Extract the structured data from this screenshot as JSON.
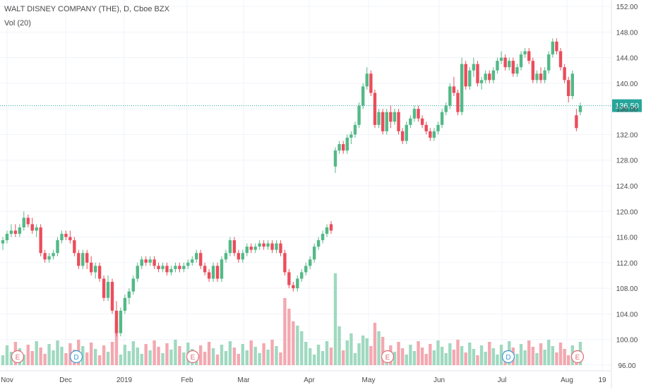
{
  "header": {
    "symbol_line": "WALT DISNEY COMPANY (THE), D, Cboe BZX",
    "indicator": "Vol (20)"
  },
  "colors": {
    "up": "#53b987",
    "down": "#eb4d5c",
    "vol_up": "#9fd9c0",
    "vol_down": "#f3a8b0",
    "grid": "#f0f3fa",
    "axis_text": "#4a4a4a",
    "price_line": "#26a69a",
    "last_price_bg": "#26a69a",
    "event_earnings": "#e06c75",
    "event_dividend": "#3a9bd5"
  },
  "price_axis": {
    "ticks": [
      "152.00",
      "148.00",
      "144.00",
      "140.00",
      "136.00",
      "132.00",
      "128.00",
      "124.00",
      "120.00",
      "116.00",
      "112.00",
      "108.00",
      "104.00",
      "100.00",
      "96.00"
    ],
    "last_price_label": "136.50"
  },
  "time_axis": {
    "labels": [
      "Nov",
      "Dec",
      "2019",
      "Feb",
      "Mar",
      "Apr",
      "May",
      "Jun",
      "Jul",
      "Aug",
      "19"
    ]
  },
  "events": [
    {
      "type": "earnings",
      "label": "E"
    },
    {
      "type": "dividend",
      "label": "D"
    },
    {
      "type": "earnings",
      "label": "E"
    },
    {
      "type": "earnings",
      "label": "E"
    },
    {
      "type": "dividend",
      "label": "D"
    },
    {
      "type": "earnings",
      "label": "E"
    }
  ],
  "chart_data": {
    "type": "candlestick",
    "title": "WALT DISNEY COMPANY (THE), D, Cboe BZX",
    "y_range": [
      96,
      153
    ],
    "last_price": 136.5,
    "volume_indicator": "Vol (20)",
    "series_hint": "daily OHLC approximated from the figure",
    "ohlc": [
      [
        115,
        116,
        114,
        115.5
      ],
      [
        115.5,
        117,
        115,
        116.5
      ],
      [
        116.5,
        118,
        116,
        117
      ],
      [
        117,
        118,
        116,
        116.5
      ],
      [
        116.5,
        118,
        116,
        117.5
      ],
      [
        117.5,
        120,
        117,
        119
      ],
      [
        119,
        119.5,
        117.5,
        118
      ],
      [
        118,
        119,
        116.5,
        117
      ],
      [
        117,
        118,
        116,
        117.5
      ],
      [
        117.5,
        118,
        113,
        113.5
      ],
      [
        113.5,
        114,
        112,
        112.5
      ],
      [
        112.5,
        113.5,
        112,
        113
      ],
      [
        113,
        114,
        112.5,
        113.5
      ],
      [
        113.5,
        116,
        113,
        115.5
      ],
      [
        115.5,
        117,
        115,
        116.5
      ],
      [
        116.5,
        117,
        115.5,
        116
      ],
      [
        116,
        117,
        115,
        115.5
      ],
      [
        115.5,
        116,
        113,
        113.5
      ],
      [
        113.5,
        114,
        111,
        111.5
      ],
      [
        111.5,
        114,
        111,
        113.5
      ],
      [
        113.5,
        114,
        111,
        112
      ],
      [
        112,
        113,
        110,
        110.5
      ],
      [
        110.5,
        112,
        109.5,
        111.5
      ],
      [
        111.5,
        112,
        109,
        109.5
      ],
      [
        109.5,
        110,
        106,
        106.5
      ],
      [
        106.5,
        110,
        106,
        109
      ],
      [
        109,
        109.5,
        104,
        104.5
      ],
      [
        104.5,
        106,
        100.5,
        101
      ],
      [
        101,
        105,
        100.5,
        104.5
      ],
      [
        104.5,
        107,
        104,
        106.5
      ],
      [
        106.5,
        108,
        105.5,
        107.5
      ],
      [
        107.5,
        110,
        107,
        109.5
      ],
      [
        109.5,
        112,
        109,
        111.5
      ],
      [
        111.5,
        113,
        111,
        112.5
      ],
      [
        112.5,
        113,
        111.5,
        112
      ],
      [
        112,
        113,
        111.5,
        112.5
      ],
      [
        112.5,
        113,
        111,
        111.5
      ],
      [
        111.5,
        112,
        110.5,
        111
      ],
      [
        111,
        112,
        110.5,
        111.5
      ],
      [
        111.5,
        112,
        110,
        110.5
      ],
      [
        110.5,
        111.5,
        110,
        111
      ],
      [
        111,
        112,
        110.5,
        111.5
      ],
      [
        111.5,
        112,
        110.5,
        111
      ],
      [
        111,
        112,
        110.5,
        111.5
      ],
      [
        111.5,
        112.5,
        111,
        112
      ],
      [
        112,
        113,
        111.5,
        112.5
      ],
      [
        112.5,
        114,
        112,
        113.5
      ],
      [
        113.5,
        114,
        111,
        111.5
      ],
      [
        111.5,
        112,
        110,
        110.5
      ],
      [
        110.5,
        111,
        109,
        109.5
      ],
      [
        109.5,
        112,
        109,
        111.5
      ],
      [
        111.5,
        112,
        109,
        109.5
      ],
      [
        109.5,
        113,
        109,
        112.5
      ],
      [
        112.5,
        114,
        112,
        113.5
      ],
      [
        113.5,
        116,
        113,
        115.5
      ],
      [
        115.5,
        116,
        113,
        113.5
      ],
      [
        113.5,
        114,
        112,
        112.5
      ],
      [
        112.5,
        114,
        112,
        113.5
      ],
      [
        113.5,
        115,
        113,
        114.5
      ],
      [
        114.5,
        115,
        113.5,
        114
      ],
      [
        114,
        115,
        113.5,
        114.5
      ],
      [
        114.5,
        115.5,
        114,
        115
      ],
      [
        115,
        115.5,
        114,
        114.5
      ],
      [
        114.5,
        115.5,
        114,
        115
      ],
      [
        115,
        115.5,
        113.5,
        114
      ],
      [
        114,
        115.5,
        113.5,
        115
      ],
      [
        115,
        115.5,
        113,
        113.5
      ],
      [
        113.5,
        114,
        110,
        110.5
      ],
      [
        110.5,
        111,
        108,
        108.5
      ],
      [
        108.5,
        109,
        107.5,
        108
      ],
      [
        108,
        110,
        107.5,
        109.5
      ],
      [
        109.5,
        111,
        109,
        110.5
      ],
      [
        110.5,
        112,
        110,
        111.5
      ],
      [
        111.5,
        113,
        111,
        112.5
      ],
      [
        112.5,
        115,
        112,
        114.5
      ],
      [
        114.5,
        116,
        114,
        115.5
      ],
      [
        115.5,
        117,
        115,
        116.5
      ],
      [
        116.5,
        118,
        116,
        117.5
      ],
      [
        118,
        118.5,
        116.5,
        117
      ],
      [
        127,
        130,
        126,
        129.5
      ],
      [
        129.5,
        131,
        129,
        130.5
      ],
      [
        130.5,
        131,
        129,
        129.5
      ],
      [
        129.5,
        132,
        129,
        131.5
      ],
      [
        131.5,
        132.5,
        130.5,
        132
      ],
      [
        132,
        134,
        131.5,
        133.5
      ],
      [
        133.5,
        137,
        133,
        136.5
      ],
      [
        136.5,
        140,
        136,
        139.5
      ],
      [
        139.5,
        142.5,
        139,
        141.5
      ],
      [
        141.5,
        142,
        138,
        138.5
      ],
      [
        138.5,
        139,
        133,
        133.5
      ],
      [
        133.5,
        136,
        133,
        135.5
      ],
      [
        135.5,
        136,
        132,
        132.5
      ],
      [
        132.5,
        136,
        132,
        135.5
      ],
      [
        135.5,
        136.5,
        133,
        134
      ],
      [
        134,
        136,
        133.5,
        135.5
      ],
      [
        135.5,
        136,
        132,
        132.5
      ],
      [
        132.5,
        133,
        130.5,
        131
      ],
      [
        131,
        134,
        130.5,
        133.5
      ],
      [
        133.5,
        135,
        133,
        134.5
      ],
      [
        134.5,
        136.5,
        134,
        136
      ],
      [
        136,
        136.5,
        134,
        134.5
      ],
      [
        134.5,
        135,
        133,
        133.5
      ],
      [
        133.5,
        134,
        132,
        132.5
      ],
      [
        132.5,
        133,
        131,
        131.5
      ],
      [
        131.5,
        133,
        131,
        132.5
      ],
      [
        132.5,
        134,
        132,
        133.5
      ],
      [
        133.5,
        136,
        133,
        135.5
      ],
      [
        135.5,
        137,
        135,
        136.5
      ],
      [
        136.5,
        140,
        136,
        139.5
      ],
      [
        139.5,
        141,
        138,
        138.5
      ],
      [
        138.5,
        139,
        135,
        135.5
      ],
      [
        135.5,
        144,
        135,
        143
      ],
      [
        143,
        143.5,
        139,
        139.5
      ],
      [
        139.5,
        142.5,
        139,
        142
      ],
      [
        142,
        144,
        141,
        143
      ],
      [
        143,
        143.5,
        139.5,
        140
      ],
      [
        140,
        141,
        139,
        140.5
      ],
      [
        140.5,
        142,
        140,
        141.5
      ],
      [
        141.5,
        142,
        140,
        140.5
      ],
      [
        140.5,
        142.5,
        140,
        142
      ],
      [
        142,
        144,
        141.5,
        143.5
      ],
      [
        143.5,
        145,
        143,
        144
      ],
      [
        144,
        144.5,
        142,
        142.5
      ],
      [
        142.5,
        144,
        142,
        143.5
      ],
      [
        143.5,
        144,
        141,
        141.5
      ],
      [
        141.5,
        143,
        141,
        142.5
      ],
      [
        142.5,
        145,
        142,
        144.5
      ],
      [
        144.5,
        145.5,
        144,
        145
      ],
      [
        145,
        145.5,
        143,
        143.5
      ],
      [
        143.5,
        144,
        140,
        140.5
      ],
      [
        140.5,
        142,
        140,
        141.5
      ],
      [
        141.5,
        142.5,
        140,
        140.5
      ],
      [
        140.5,
        142.5,
        140,
        142
      ],
      [
        142,
        145,
        141.5,
        144.5
      ],
      [
        144.5,
        147,
        144,
        146.5
      ],
      [
        146.5,
        147,
        144.5,
        145
      ],
      [
        145,
        145.5,
        142,
        142.5
      ],
      [
        142.5,
        143,
        140,
        140.5
      ],
      [
        140.5,
        141,
        137,
        138
      ],
      [
        138,
        142,
        137.5,
        141.5
      ],
      [
        135,
        136,
        132.5,
        133
      ],
      [
        135.5,
        137,
        135,
        136.5
      ]
    ],
    "volume_scale": [
      0,
      10
    ],
    "volume_hint": "relative daily volume bars, colored by candle direction"
  }
}
